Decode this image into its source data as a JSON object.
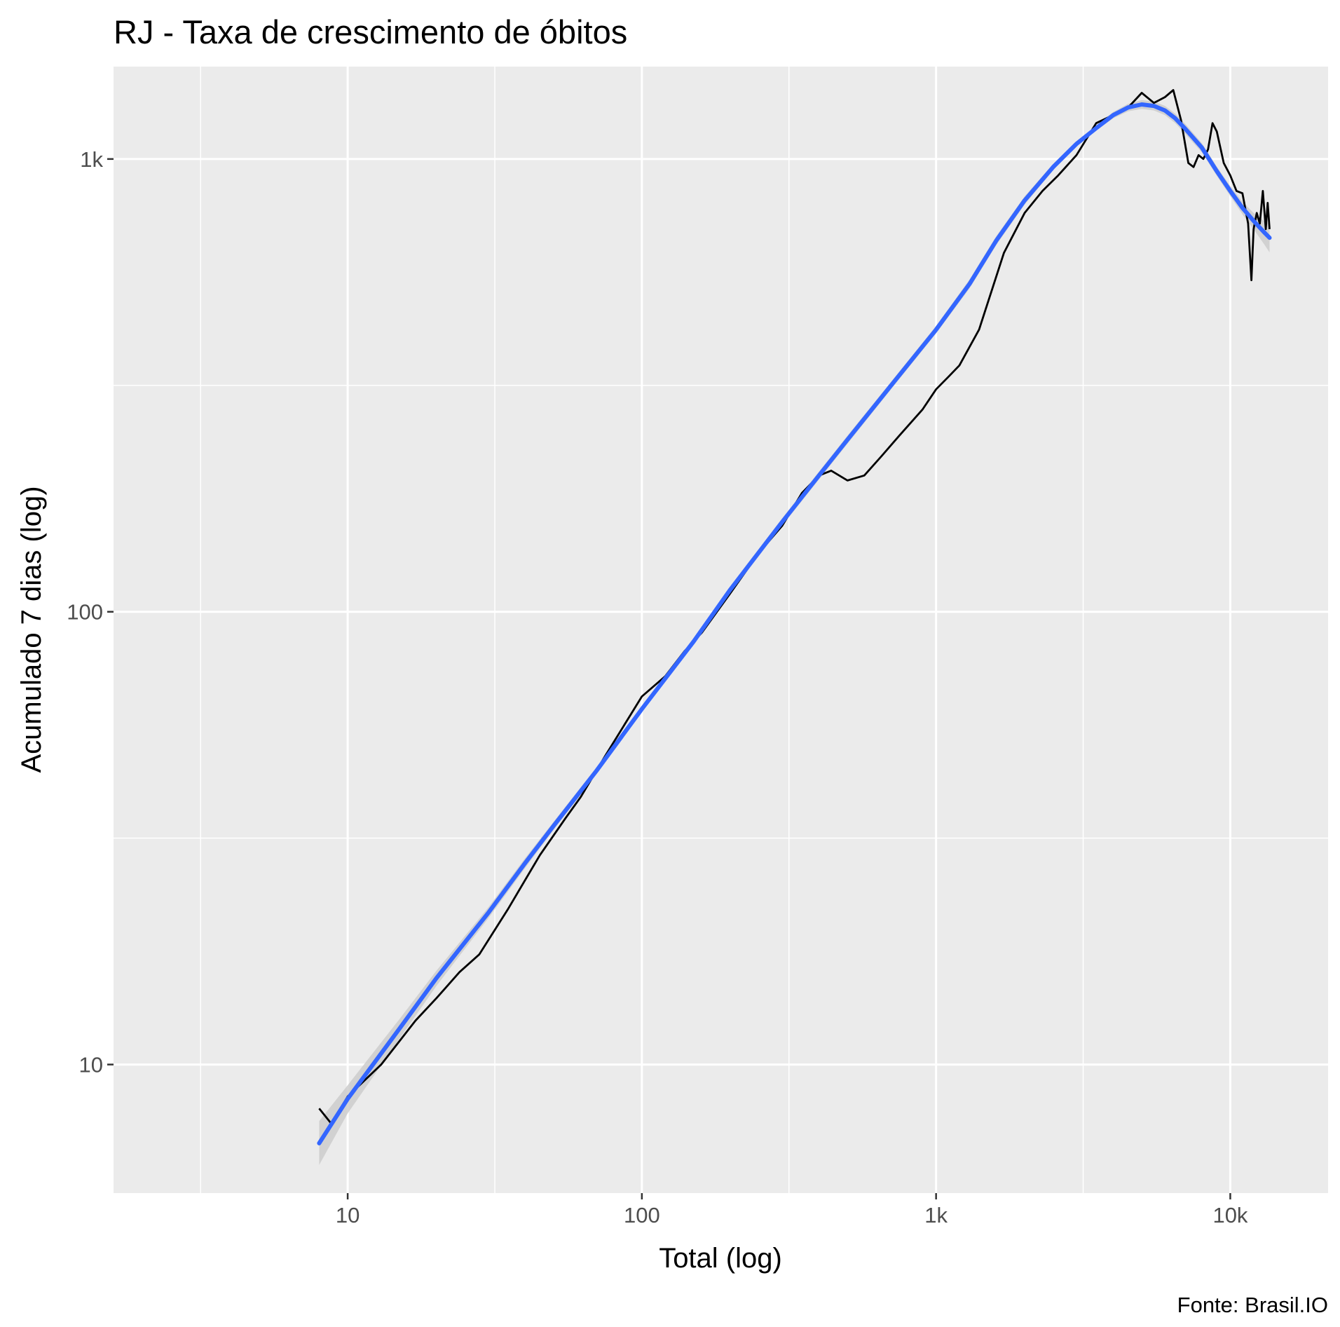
{
  "chart_data": {
    "type": "line",
    "title": "RJ - Taxa de crescimento de óbitos",
    "xlabel": "Total (log)",
    "ylabel": "Acumulado 7 dias (log)",
    "caption": "Fonte: Brasil.IO",
    "x_scale": "log10",
    "y_scale": "log10",
    "xlim": [
      1.6,
      21500
    ],
    "ylim": [
      5.2,
      1600
    ],
    "x_ticks": [
      {
        "value": 10,
        "label": "10"
      },
      {
        "value": 100,
        "label": "100"
      },
      {
        "value": 1000,
        "label": "1k"
      },
      {
        "value": 10000,
        "label": "10k"
      }
    ],
    "y_ticks": [
      {
        "value": 10,
        "label": "10"
      },
      {
        "value": 100,
        "label": "100"
      },
      {
        "value": 1000,
        "label": "1k"
      }
    ],
    "grid": true,
    "legend": "none",
    "colors": {
      "panel_background": "#ebebeb",
      "grid": "#ffffff",
      "series_line": "#000000",
      "smooth_line": "#3366ff",
      "confidence_band": "#cccccc"
    },
    "series": [
      {
        "kind": "observed",
        "x": [
          8,
          8.8,
          10,
          13,
          17,
          20,
          24,
          28,
          35,
          45,
          55,
          62,
          75,
          100,
          120,
          140,
          160,
          200,
          250,
          300,
          350,
          400,
          440,
          500,
          570,
          650,
          750,
          900,
          1000,
          1100,
          1200,
          1400,
          1700,
          2000,
          2300,
          2600,
          3000,
          3500,
          4000,
          4500,
          5000,
          5500,
          6000,
          6400,
          6800,
          7200,
          7500,
          7800,
          8100,
          8400,
          8700,
          9000,
          9500,
          10000,
          10500,
          11000,
          11500,
          11800,
          12000,
          12300,
          12600,
          12900,
          13200,
          13400,
          13600
        ],
        "y": [
          8,
          7.4,
          8.5,
          10,
          12.5,
          14,
          16,
          17.5,
          22,
          29,
          35,
          39,
          48,
          65,
          72,
          82,
          90,
          110,
          135,
          155,
          183,
          200,
          205,
          195,
          200,
          220,
          245,
          280,
          310,
          330,
          350,
          420,
          620,
          760,
          850,
          920,
          1020,
          1200,
          1250,
          1300,
          1400,
          1330,
          1370,
          1420,
          1220,
          980,
          960,
          1020,
          1000,
          1050,
          1200,
          1150,
          980,
          920,
          850,
          840,
          720,
          540,
          700,
          760,
          720,
          850,
          700,
          800,
          700
        ]
      },
      {
        "kind": "smooth",
        "x": [
          8,
          10,
          15,
          20,
          30,
          40,
          50,
          70,
          100,
          150,
          200,
          300,
          400,
          500,
          700,
          1000,
          1300,
          1600,
          2000,
          2500,
          3000,
          3500,
          4000,
          4500,
          5000,
          5500,
          6000,
          6500,
          7000,
          8000,
          9000,
          10000,
          11000,
          12000,
          13000,
          13600
        ],
        "y": [
          6.7,
          8.4,
          12,
          15.5,
          21.6,
          27.8,
          33.6,
          44.5,
          61,
          86,
          112,
          158,
          200,
          240,
          315,
          420,
          530,
          660,
          810,
          960,
          1080,
          1170,
          1250,
          1300,
          1320,
          1310,
          1280,
          1230,
          1170,
          1060,
          940,
          850,
          780,
          730,
          690,
          670
        ],
        "band_lower": [
          6.0,
          7.8,
          11.4,
          14.9,
          21.0,
          27.1,
          32.9,
          43.7,
          60,
          84.6,
          110,
          155,
          196,
          235,
          309,
          412,
          518,
          645,
          793,
          945,
          1065,
          1155,
          1230,
          1275,
          1290,
          1280,
          1250,
          1200,
          1140,
          1035,
          918,
          828,
          755,
          700,
          650,
          622
        ],
        "band_upper": [
          7.5,
          9.0,
          12.6,
          16.1,
          22.2,
          28.5,
          34.3,
          45.3,
          62,
          87.4,
          114,
          161,
          204,
          245,
          321,
          428,
          542,
          675,
          827,
          975,
          1095,
          1185,
          1270,
          1325,
          1350,
          1340,
          1310,
          1260,
          1200,
          1085,
          962,
          872,
          805,
          760,
          730,
          720
        ]
      }
    ]
  }
}
